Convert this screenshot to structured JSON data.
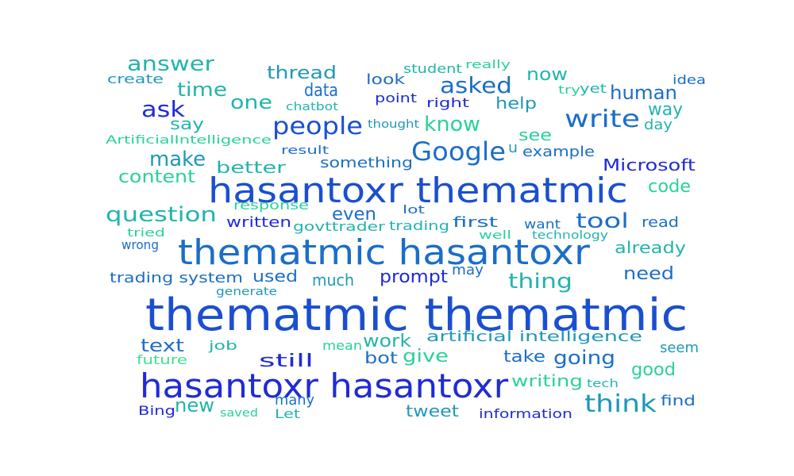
{
  "colors": {
    "blue": "#1f2bd6",
    "royal": "#1a4fd0",
    "steel": "#1b6ec8",
    "teal": "#1f98b9",
    "cyan": "#22b4ad",
    "mint": "#2ad19a",
    "green": "#3ee08f",
    "background": "#ffffff"
  },
  "words": [
    {
      "text": "thematmic thematmic",
      "color": "royal"
    },
    {
      "text": "hasantoxr thematmic",
      "color": "royal"
    },
    {
      "text": "thematmic hasantoxr",
      "color": "steel"
    },
    {
      "text": "hasantoxr hasantoxr",
      "color": "blue"
    },
    {
      "text": "Google",
      "color": "steel"
    },
    {
      "text": "people",
      "color": "royal"
    },
    {
      "text": "write",
      "color": "steel"
    },
    {
      "text": "think",
      "color": "teal"
    },
    {
      "text": "asked",
      "color": "steel"
    },
    {
      "text": "answer",
      "color": "cyan"
    },
    {
      "text": "question",
      "color": "cyan"
    },
    {
      "text": "know",
      "color": "mint"
    },
    {
      "text": "tool",
      "color": "steel"
    },
    {
      "text": "thing",
      "color": "cyan"
    },
    {
      "text": "make",
      "color": "teal"
    },
    {
      "text": "ask",
      "color": "blue"
    },
    {
      "text": "one",
      "color": "cyan"
    },
    {
      "text": "time",
      "color": "cyan"
    },
    {
      "text": "human",
      "color": "steel"
    },
    {
      "text": "way",
      "color": "cyan"
    },
    {
      "text": "new",
      "color": "cyan"
    },
    {
      "text": "going",
      "color": "steel"
    },
    {
      "text": "content",
      "color": "mint"
    },
    {
      "text": "thread",
      "color": "teal"
    },
    {
      "text": "now",
      "color": "cyan"
    },
    {
      "text": "data",
      "color": "steel"
    },
    {
      "text": "prompt",
      "color": "blue"
    },
    {
      "text": "need",
      "color": "steel"
    },
    {
      "text": "text",
      "color": "steel"
    },
    {
      "text": "work",
      "color": "cyan"
    },
    {
      "text": "give",
      "color": "mint"
    },
    {
      "text": "good",
      "color": "mint"
    },
    {
      "text": "code",
      "color": "mint"
    },
    {
      "text": "still",
      "color": "blue"
    },
    {
      "text": "even",
      "color": "steel"
    },
    {
      "text": "used",
      "color": "steel"
    },
    {
      "text": "much",
      "color": "teal"
    },
    {
      "text": "already",
      "color": "cyan"
    },
    {
      "text": "bot",
      "color": "steel"
    },
    {
      "text": "take",
      "color": "steel"
    },
    {
      "text": "say",
      "color": "cyan"
    },
    {
      "text": "see",
      "color": "mint"
    },
    {
      "text": "tweet",
      "color": "teal"
    },
    {
      "text": "better",
      "color": "cyan"
    },
    {
      "text": "help",
      "color": "teal"
    },
    {
      "text": "writing",
      "color": "mint"
    },
    {
      "text": "Microsoft",
      "color": "blue"
    },
    {
      "text": "something",
      "color": "steel"
    },
    {
      "text": "artificial intelligence",
      "color": "teal"
    },
    {
      "text": "example",
      "color": "steel"
    },
    {
      "text": "look",
      "color": "steel"
    },
    {
      "text": "u",
      "color": "teal"
    },
    {
      "text": "trading system",
      "color": "steel"
    },
    {
      "text": "first",
      "color": "steel"
    },
    {
      "text": "read",
      "color": "steel"
    },
    {
      "text": "written",
      "color": "blue"
    },
    {
      "text": "may",
      "color": "steel"
    },
    {
      "text": "many",
      "color": "steel"
    },
    {
      "text": "day",
      "color": "cyan"
    },
    {
      "text": "seem",
      "color": "teal"
    },
    {
      "text": "find",
      "color": "steel"
    },
    {
      "text": "create",
      "color": "teal"
    },
    {
      "text": "idea",
      "color": "steel"
    },
    {
      "text": "right",
      "color": "blue"
    },
    {
      "text": "point",
      "color": "blue"
    },
    {
      "text": "student",
      "color": "cyan"
    },
    {
      "text": "trading",
      "color": "cyan"
    },
    {
      "text": "govttrader",
      "color": "cyan"
    },
    {
      "text": "response",
      "color": "mint"
    },
    {
      "text": "information",
      "color": "blue"
    },
    {
      "text": "want",
      "color": "steel"
    },
    {
      "text": "yet",
      "color": "cyan"
    },
    {
      "text": "try",
      "color": "mint"
    },
    {
      "text": "job",
      "color": "cyan"
    },
    {
      "text": "tech",
      "color": "cyan"
    },
    {
      "text": "Bing",
      "color": "blue"
    },
    {
      "text": "Let",
      "color": "cyan"
    },
    {
      "text": "mean",
      "color": "mint"
    },
    {
      "text": "future",
      "color": "green"
    },
    {
      "text": "wrong",
      "color": "steel"
    },
    {
      "text": "technology",
      "color": "cyan"
    },
    {
      "text": "really",
      "color": "mint"
    },
    {
      "text": "chatbot",
      "color": "cyan"
    },
    {
      "text": "thought",
      "color": "teal"
    },
    {
      "text": "result",
      "color": "steel"
    },
    {
      "text": "ArtificialIntelligence",
      "color": "mint"
    },
    {
      "text": "tried",
      "color": "mint"
    },
    {
      "text": "lot",
      "color": "steel"
    },
    {
      "text": "well",
      "color": "mint"
    },
    {
      "text": "generate",
      "color": "teal"
    },
    {
      "text": "saved",
      "color": "mint"
    }
  ]
}
